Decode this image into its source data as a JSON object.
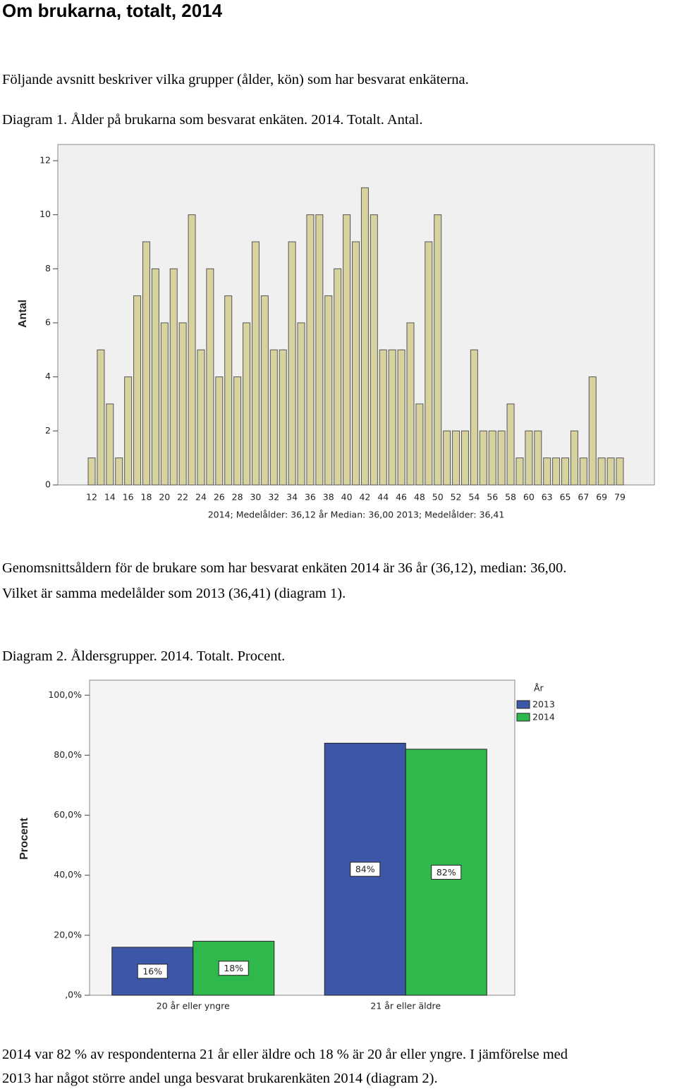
{
  "header": {
    "title": "Om brukarna, totalt, 2014"
  },
  "intro": "Följande avsnitt beskriver vilka grupper (ålder, kön) som har besvarat enkäterna.",
  "caption_1": "Diagram 1. Ålder på brukarna som besvarat enkäten. 2014. Totalt. Antal.",
  "text_1": [
    "Genomsnittsåldern för de brukare som har besvarat enkäten 2014 är 36 år (36,12), median: 36,00.",
    "Vilket är samma medelålder som 2013 (36,41) (diagram 1)."
  ],
  "caption_2": "Diagram 2. Åldersgrupper. 2014. Totalt. Procent.",
  "text_2": [
    "2014 var 82 % av respondenterna 21 år eller äldre och 18 % är 20 år eller yngre. I jämförelse med",
    "2013 har något större andel unga besvarat brukarenkäten 2014 (diagram 2)."
  ],
  "chart_data": [
    {
      "type": "bar",
      "ylabel": "Antal",
      "xlabel": "2014; Medelålder: 36,12 år  Median: 36,00   2013; Medelålder: 36,41",
      "categories": [
        "12",
        null,
        "14",
        null,
        "16",
        null,
        "18",
        null,
        "20",
        null,
        "22",
        null,
        "24",
        null,
        "26",
        null,
        "28",
        null,
        "30",
        null,
        "32",
        null,
        "34",
        null,
        "36",
        null,
        "38",
        null,
        "40",
        null,
        "42",
        null,
        "44",
        null,
        "46",
        null,
        "48",
        null,
        "50",
        null,
        "52",
        null,
        "54",
        null,
        "56",
        null,
        "58",
        null,
        "60",
        null,
        "63",
        null,
        "65",
        null,
        "67",
        null,
        "69",
        null,
        "79"
      ],
      "values": [
        1,
        5,
        3,
        1,
        4,
        7,
        9,
        8,
        6,
        8,
        6,
        10,
        5,
        8,
        4,
        7,
        4,
        6,
        9,
        7,
        5,
        5,
        9,
        6,
        10,
        10,
        7,
        8,
        10,
        9,
        11,
        10,
        5,
        5,
        5,
        6,
        3,
        9,
        10,
        2,
        2,
        2,
        5,
        2,
        2,
        2,
        3,
        1,
        2,
        2,
        1,
        1,
        1,
        2,
        1,
        4,
        1,
        1,
        1
      ],
      "color": "#d8d39e",
      "ylim": [
        0,
        12.6
      ],
      "yticks": [
        0,
        2,
        4,
        6,
        8,
        10,
        12
      ]
    },
    {
      "type": "grouped_bar",
      "ylabel": "Procent",
      "categories": [
        "20 år eller yngre",
        "21 år eller äldre"
      ],
      "legend_title": "År",
      "legend": "right",
      "series": [
        {
          "name": "2013",
          "color": "#3d57a8",
          "values": [
            16,
            84
          ],
          "value_labels": [
            "16%",
            "84%"
          ]
        },
        {
          "name": "2014",
          "color": "#2fb84b",
          "values": [
            18,
            82
          ],
          "value_labels": [
            "18%",
            "82%"
          ]
        }
      ],
      "ylim": [
        0,
        105
      ],
      "yticks": [
        {
          "value": 0,
          "label": ",0%"
        },
        {
          "value": 20,
          "label": "20,0%"
        },
        {
          "value": 40,
          "label": "40,0%"
        },
        {
          "value": 60,
          "label": "60,0%"
        },
        {
          "value": 80,
          "label": "80,0%"
        },
        {
          "value": 100,
          "label": "100,0%"
        }
      ]
    }
  ]
}
